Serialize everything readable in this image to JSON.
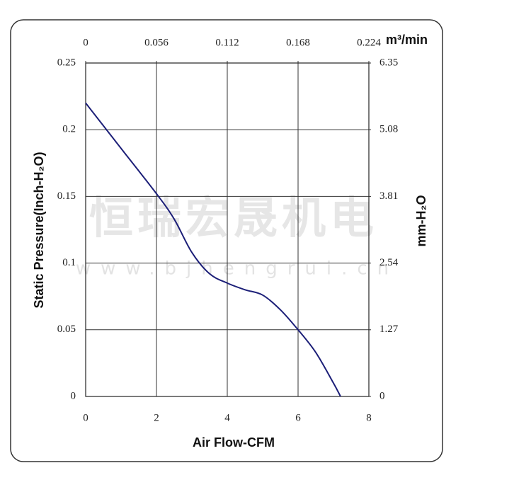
{
  "chart_data": {
    "type": "line",
    "xlabel": "Air Flow-CFM",
    "ylabel": "Static Pressure(Inch-H₂O)",
    "x2label": "m³/min",
    "y2label": "mm-H₂O",
    "watermark": [
      "恒瑞宏晟机电",
      "www.bjhengrui.cn"
    ],
    "x": [
      0,
      1,
      2,
      2.5,
      3,
      3.5,
      4,
      4.5,
      5,
      5.5,
      6,
      6.5,
      7,
      7.2
    ],
    "series": [
      {
        "color": "#1c1f78",
        "values": [
          0.22,
          0.186,
          0.152,
          0.133,
          0.108,
          0.092,
          0.085,
          0.08,
          0.076,
          0.065,
          0.05,
          0.033,
          0.01,
          0
        ]
      }
    ],
    "xlim": [
      0,
      8
    ],
    "xticks": [
      0,
      2,
      4,
      6,
      8
    ],
    "ylim": [
      0,
      0.25
    ],
    "yticks": [
      0,
      0.05,
      0.1,
      0.15,
      0.2,
      0.25
    ],
    "x2lim": [
      0,
      0.224
    ],
    "x2ticks": [
      0,
      0.056,
      0.112,
      0.168,
      0.224
    ],
    "y2lim": [
      0,
      6.35
    ],
    "y2ticks": [
      0,
      1.27,
      2.54,
      3.81,
      5.08,
      6.35
    ],
    "grid": true
  }
}
